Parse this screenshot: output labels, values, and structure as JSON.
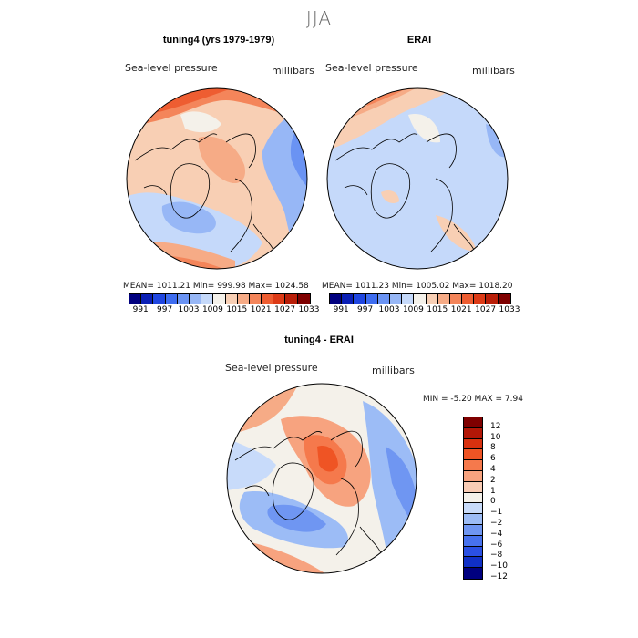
{
  "figure": {
    "title": "JJA"
  },
  "panels": [
    {
      "title": "tuning4 (yrs 1979-1979)",
      "variable": "Sea-level pressure",
      "units": "millibars",
      "stats": "MEAN= 1011.21   Min= 999.98   Max= 1024.58",
      "colorbar_ticks": [
        "991",
        "997",
        "1003",
        "1009",
        "1015",
        "1021",
        "1027",
        "1033"
      ]
    },
    {
      "title": "ERAI",
      "variable": "Sea-level pressure",
      "units": "millibars",
      "stats": "MEAN= 1011.23   Min= 1005.02   Max= 1018.20",
      "colorbar_ticks": [
        "991",
        "997",
        "1003",
        "1009",
        "1015",
        "1021",
        "1027",
        "1033"
      ]
    }
  ],
  "difference": {
    "title": "tuning4 - ERAI",
    "variable": "Sea-level pressure",
    "units": "millibars",
    "stats": "MIN =   -5.20 MAX =    7.94",
    "colorbar_labels": [
      "12",
      "10",
      "8",
      "6",
      "4",
      "2",
      "1",
      "0",
      "-1",
      "-2",
      "-4",
      "-6",
      "-8",
      "-10",
      "-12"
    ]
  },
  "colors": {
    "abs_scale": [
      "#00007f",
      "#0a1fb5",
      "#1f46e0",
      "#3d6cf0",
      "#6a93f3",
      "#97b7f6",
      "#c5d9fa",
      "#f4f1ea",
      "#f8cfb4",
      "#f6ab86",
      "#f4855a",
      "#ee5d31",
      "#dd3a16",
      "#b91e08",
      "#7f0000"
    ],
    "diff_scale": [
      "#7f0000",
      "#b31707",
      "#d8310f",
      "#ef5424",
      "#f5794c",
      "#f7a37f",
      "#f9ccb5",
      "#f4f1ea",
      "#c8dbfa",
      "#9cbcf6",
      "#6f96f2",
      "#4772ee",
      "#2a50e3",
      "#1030c6",
      "#00007f"
    ],
    "ocean_base": "#dbe6f8",
    "land_line": "#000000"
  }
}
